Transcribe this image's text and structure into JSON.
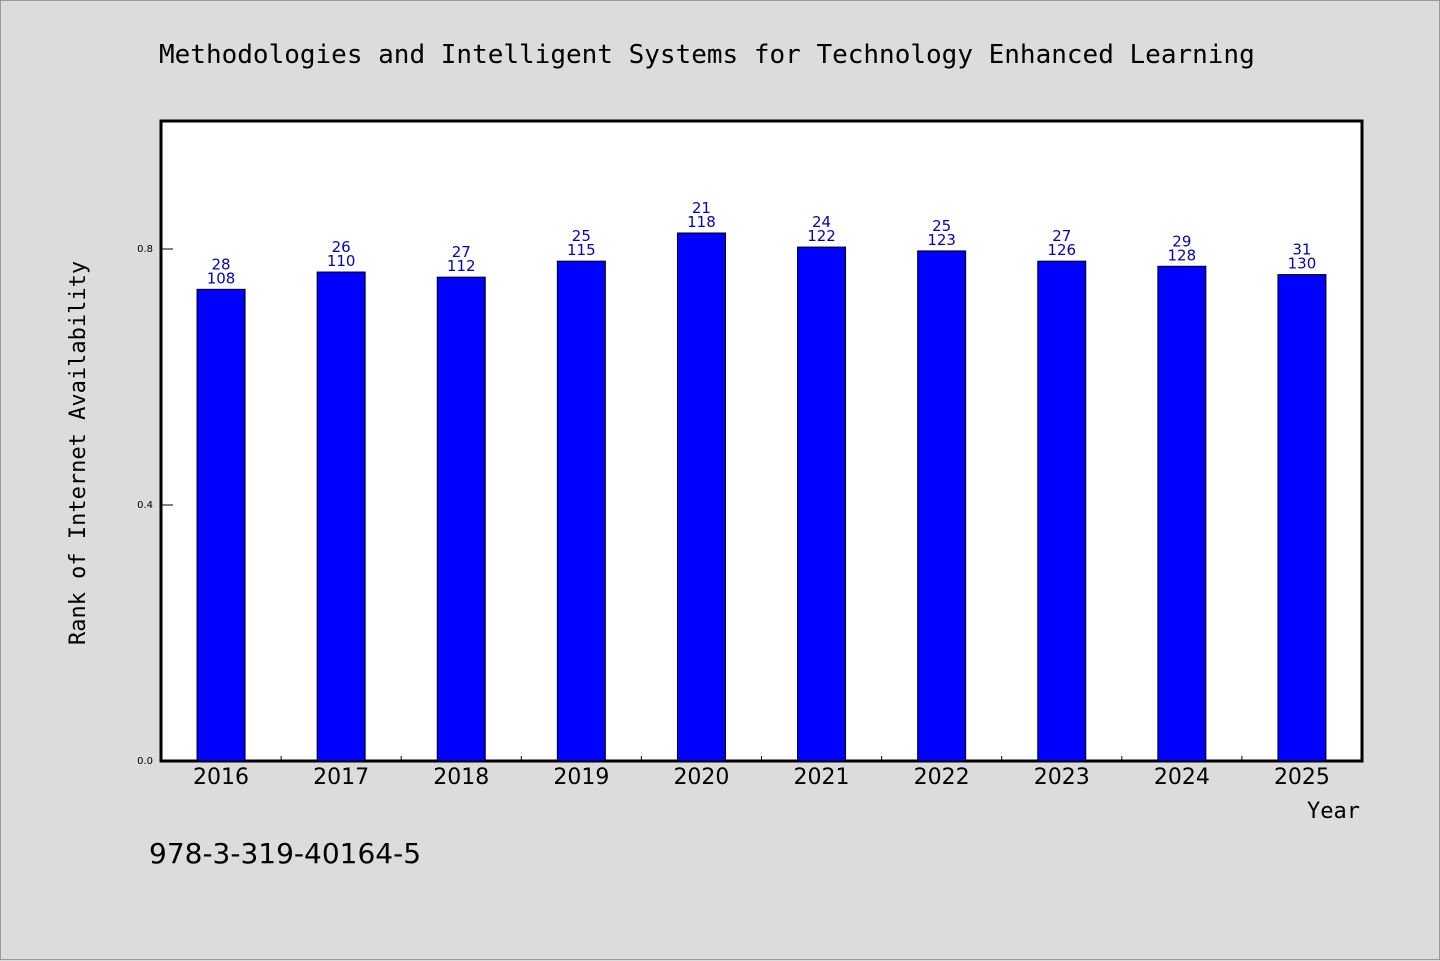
{
  "chart_data": {
    "type": "bar",
    "title": "Methodologies and Intelligent Systems for Technology Enhanced Learning",
    "xlabel": "Year",
    "ylabel": "Rank of Internet Availability",
    "categories": [
      "2016",
      "2017",
      "2018",
      "2019",
      "2020",
      "2021",
      "2022",
      "2023",
      "2024",
      "2025"
    ],
    "values": [
      0.737,
      0.764,
      0.756,
      0.781,
      0.825,
      0.803,
      0.797,
      0.781,
      0.773,
      0.76
    ],
    "label_rank": [
      "28",
      "26",
      "27",
      "25",
      "21",
      "24",
      "25",
      "27",
      "29",
      "31"
    ],
    "label_total": [
      "108",
      "110",
      "112",
      "115",
      "118",
      "122",
      "123",
      "126",
      "128",
      "130"
    ],
    "ylim": [
      0,
      1.0
    ],
    "yticks": [
      0.0,
      0.4,
      0.8
    ],
    "ytick_labels": [
      "0.0",
      "0.4",
      "0.8"
    ],
    "bar_color": "#0000ff",
    "label_color": "#0000cc",
    "grid": false,
    "legend": "none"
  },
  "footer": {
    "isbn": "978-3-319-40164-5"
  }
}
